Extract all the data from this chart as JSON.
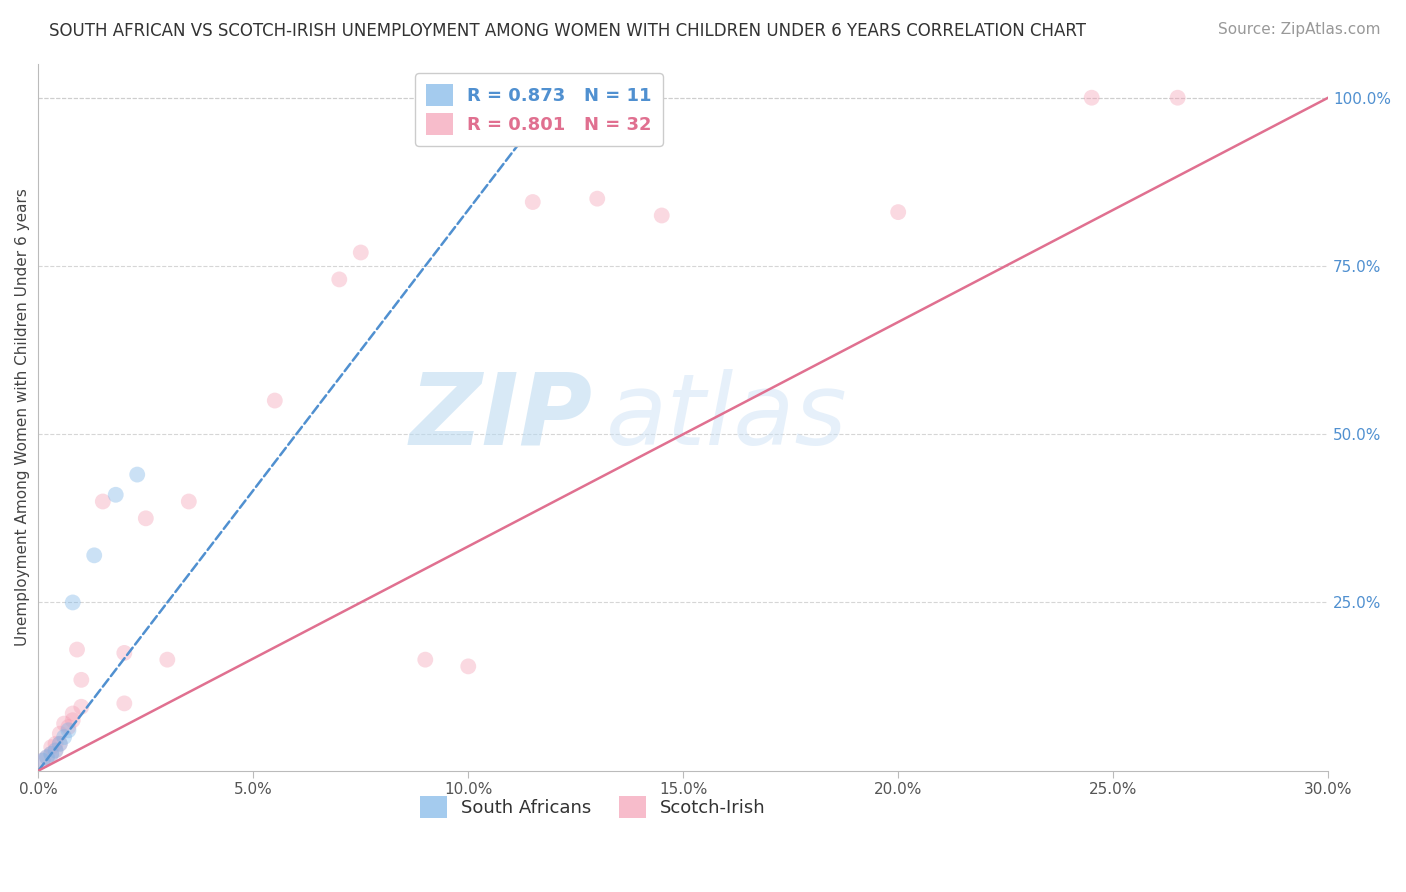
{
  "title": "SOUTH AFRICAN VS SCOTCH-IRISH UNEMPLOYMENT AMONG WOMEN WITH CHILDREN UNDER 6 YEARS CORRELATION CHART",
  "source": "Source: ZipAtlas.com",
  "ylabel": "Unemployment Among Women with Children Under 6 years",
  "xlabel": "",
  "xlim": [
    0.0,
    0.3
  ],
  "ylim": [
    0.0,
    1.05
  ],
  "xtick_labels": [
    "0.0%",
    "5.0%",
    "10.0%",
    "15.0%",
    "20.0%",
    "25.0%",
    "30.0%"
  ],
  "xtick_values": [
    0.0,
    0.05,
    0.1,
    0.15,
    0.2,
    0.25,
    0.3
  ],
  "ytick_labels_right": [
    "25.0%",
    "50.0%",
    "75.0%",
    "100.0%"
  ],
  "ytick_values_right": [
    0.25,
    0.5,
    0.75,
    1.0
  ],
  "r_south_african": 0.873,
  "n_south_african": 11,
  "r_scotch_irish": 0.801,
  "n_scotch_irish": 32,
  "color_south_african": "#7eb6e8",
  "color_scotch_irish": "#f4a0b5",
  "color_sa_line": "#5090d0",
  "color_si_line": "#e07090",
  "watermark_zip": "ZIP",
  "watermark_atlas": "atlas",
  "south_african_x": [
    0.001,
    0.002,
    0.003,
    0.004,
    0.005,
    0.006,
    0.007,
    0.008,
    0.013,
    0.018,
    0.023
  ],
  "south_african_y": [
    0.015,
    0.02,
    0.025,
    0.03,
    0.04,
    0.05,
    0.06,
    0.25,
    0.32,
    0.41,
    0.44
  ],
  "scotch_irish_x": [
    0.001,
    0.002,
    0.003,
    0.003,
    0.004,
    0.004,
    0.005,
    0.005,
    0.006,
    0.007,
    0.008,
    0.008,
    0.009,
    0.01,
    0.01,
    0.015,
    0.02,
    0.02,
    0.025,
    0.03,
    0.035,
    0.055,
    0.07,
    0.075,
    0.09,
    0.1,
    0.115,
    0.13,
    0.145,
    0.2,
    0.245,
    0.265
  ],
  "scotch_irish_y": [
    0.015,
    0.02,
    0.025,
    0.035,
    0.03,
    0.04,
    0.04,
    0.055,
    0.07,
    0.065,
    0.075,
    0.085,
    0.18,
    0.095,
    0.135,
    0.4,
    0.1,
    0.175,
    0.375,
    0.165,
    0.4,
    0.55,
    0.73,
    0.77,
    0.165,
    0.155,
    0.845,
    0.85,
    0.825,
    0.83,
    1.0,
    1.0
  ],
  "sa_line_x": [
    0.0,
    0.12
  ],
  "sa_line_y": [
    0.0,
    1.0
  ],
  "si_line_x": [
    0.0,
    0.3
  ],
  "si_line_y": [
    0.0,
    1.0
  ],
  "title_fontsize": 12,
  "axis_label_fontsize": 11,
  "tick_fontsize": 11,
  "legend_fontsize": 13,
  "source_fontsize": 11,
  "marker_size": 130,
  "marker_alpha": 0.4,
  "background_color": "#ffffff",
  "grid_color": "#cccccc",
  "grid_alpha": 0.8,
  "right_tick_color": "#5090d0",
  "watermark_color": "#cce4f7",
  "watermark_alpha": 0.6
}
